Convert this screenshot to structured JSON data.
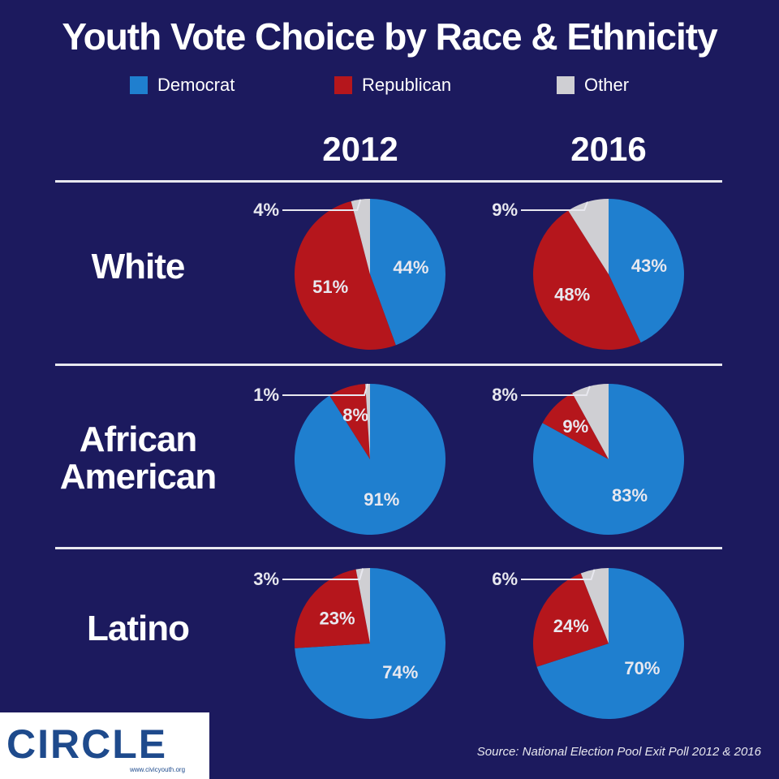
{
  "title": "Youth Vote Choice by Race & Ethnicity",
  "legend": {
    "democrat": "Democrat",
    "republican": "Republican",
    "other": "Other"
  },
  "colors": {
    "background": "#1c1a5e",
    "democrat": "#1f7fcf",
    "republican": "#b5161c",
    "other": "#cfcfd3",
    "divider": "#e8e8ef"
  },
  "years": [
    "2012",
    "2016"
  ],
  "rows": [
    "White",
    "African American",
    "Latino"
  ],
  "source": "Source: National Election Pool Exit Poll 2012 & 2016",
  "logo": {
    "text": "CIRCLE",
    "sub": "www.civicyouth.org"
  },
  "chart_data": {
    "type": "pie",
    "title": "Youth Vote Choice by Race & Ethnicity",
    "series_names": [
      "Democrat",
      "Republican",
      "Other"
    ],
    "legend_position": "top",
    "panels": [
      {
        "group": "White",
        "year": "2012",
        "values": {
          "Democrat": 44,
          "Republican": 51,
          "Other": 4
        },
        "labels": {
          "Democrat": "44%",
          "Republican": "51%",
          "Other": "4%"
        }
      },
      {
        "group": "White",
        "year": "2016",
        "values": {
          "Democrat": 43,
          "Republican": 48,
          "Other": 9
        },
        "labels": {
          "Democrat": "43%",
          "Republican": "48%",
          "Other": "9%"
        }
      },
      {
        "group": "African American",
        "year": "2012",
        "values": {
          "Democrat": 91,
          "Republican": 8,
          "Other": 1
        },
        "labels": {
          "Democrat": "91%",
          "Republican": "8%",
          "Other": "1%"
        }
      },
      {
        "group": "African American",
        "year": "2016",
        "values": {
          "Democrat": 83,
          "Republican": 9,
          "Other": 8
        },
        "labels": {
          "Democrat": "83%",
          "Republican": "9%",
          "Other": "8%"
        }
      },
      {
        "group": "Latino",
        "year": "2012",
        "values": {
          "Democrat": 74,
          "Republican": 23,
          "Other": 3
        },
        "labels": {
          "Democrat": "74%",
          "Republican": "23%",
          "Other": "3%"
        }
      },
      {
        "group": "Latino",
        "year": "2016",
        "values": {
          "Democrat": 70,
          "Republican": 24,
          "Other": 6
        },
        "labels": {
          "Democrat": "70%",
          "Republican": "24%",
          "Other": "6%"
        }
      }
    ]
  }
}
